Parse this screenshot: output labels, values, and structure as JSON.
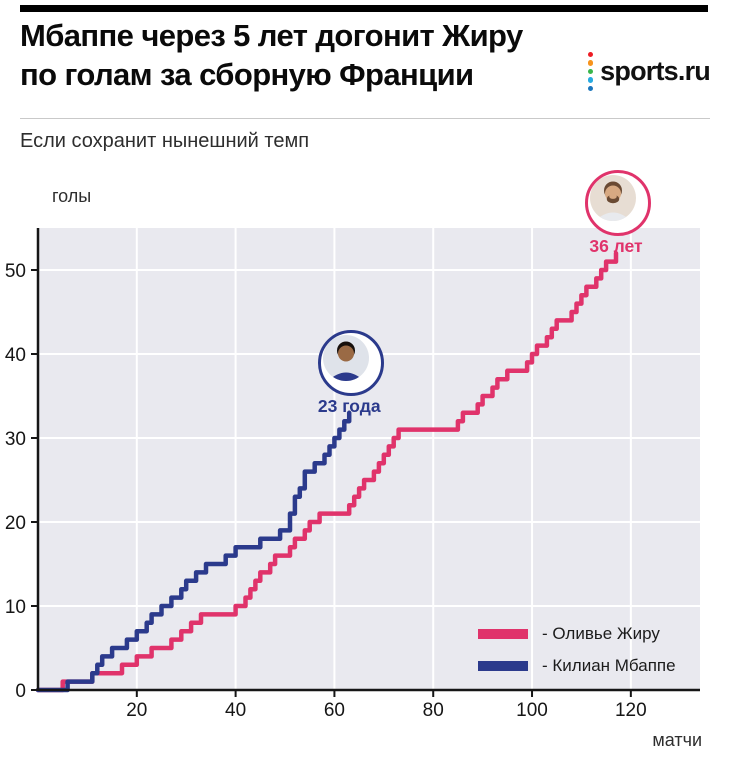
{
  "page": {
    "title_line1": "Мбаппе через 5 лет догонит Жиру",
    "title_line2": "по голам за сборную Франции",
    "logo_text": "sports.ru",
    "logo_dot_colors": [
      "#ed1c24",
      "#f7941d",
      "#39b54a",
      "#27aae1",
      "#1b75bc"
    ],
    "subtitle": "Если сохранит нынешний темп"
  },
  "chart_data": {
    "type": "line",
    "variant": "step",
    "title": "Мбаппе через 5 лет догонит Жиру по голам за сборную Франции",
    "subtitle": "Если сохранит нынешний темп",
    "xlabel": "матчи",
    "ylabel": "голы",
    "xlim": [
      0,
      134
    ],
    "ylim": [
      0,
      55
    ],
    "xticks": [
      20,
      40,
      60,
      80,
      100,
      120
    ],
    "yticks": [
      0,
      10,
      20,
      30,
      40,
      50
    ],
    "grid": true,
    "plot_bg": "#e9e9ef",
    "series": [
      {
        "id": "giroud",
        "name": "Оливье Жиру",
        "color": "#e0336b",
        "points": [
          [
            0,
            0
          ],
          [
            5,
            1
          ],
          [
            11,
            2
          ],
          [
            17,
            3
          ],
          [
            20,
            4
          ],
          [
            23,
            5
          ],
          [
            27,
            6
          ],
          [
            29,
            7
          ],
          [
            31,
            8
          ],
          [
            33,
            9
          ],
          [
            40,
            10
          ],
          [
            42,
            11
          ],
          [
            43,
            12
          ],
          [
            44,
            13
          ],
          [
            45,
            14
          ],
          [
            47,
            15
          ],
          [
            48,
            16
          ],
          [
            51,
            17
          ],
          [
            52,
            18
          ],
          [
            54,
            19
          ],
          [
            55,
            20
          ],
          [
            57,
            21
          ],
          [
            63,
            22
          ],
          [
            64,
            23
          ],
          [
            65,
            24
          ],
          [
            66,
            25
          ],
          [
            68,
            26
          ],
          [
            69,
            27
          ],
          [
            70,
            28
          ],
          [
            71,
            29
          ],
          [
            72,
            30
          ],
          [
            73,
            31
          ],
          [
            85,
            32
          ],
          [
            86,
            33
          ],
          [
            89,
            34
          ],
          [
            90,
            35
          ],
          [
            92,
            36
          ],
          [
            93,
            37
          ],
          [
            95,
            38
          ],
          [
            99,
            39
          ],
          [
            100,
            40
          ],
          [
            101,
            41
          ],
          [
            103,
            42
          ],
          [
            104,
            43
          ],
          [
            105,
            44
          ],
          [
            108,
            45
          ],
          [
            109,
            46
          ],
          [
            110,
            47
          ],
          [
            111,
            48
          ],
          [
            113,
            49
          ],
          [
            114,
            50
          ],
          [
            115,
            51
          ],
          [
            117,
            52
          ]
        ]
      },
      {
        "id": "mbappe",
        "name": "Килиан Мбаппе",
        "color": "#2b3a8c",
        "points": [
          [
            0,
            0
          ],
          [
            6,
            1
          ],
          [
            11,
            2
          ],
          [
            12,
            3
          ],
          [
            13,
            4
          ],
          [
            15,
            5
          ],
          [
            18,
            6
          ],
          [
            20,
            7
          ],
          [
            22,
            8
          ],
          [
            23,
            9
          ],
          [
            25,
            10
          ],
          [
            27,
            11
          ],
          [
            29,
            12
          ],
          [
            30,
            13
          ],
          [
            32,
            14
          ],
          [
            34,
            15
          ],
          [
            38,
            16
          ],
          [
            40,
            17
          ],
          [
            45,
            18
          ],
          [
            49,
            19
          ],
          [
            51,
            20
          ],
          [
            51,
            21
          ],
          [
            52,
            22
          ],
          [
            52,
            23
          ],
          [
            53,
            24
          ],
          [
            54,
            25
          ],
          [
            54,
            26
          ],
          [
            56,
            27
          ],
          [
            58,
            28
          ],
          [
            59,
            29
          ],
          [
            60,
            30
          ],
          [
            61,
            31
          ],
          [
            62,
            32
          ],
          [
            63,
            33
          ]
        ]
      }
    ],
    "annotations": [
      {
        "id": "giroud",
        "label": "36 лет",
        "x": 117,
        "y": 52,
        "color": "#e0336b"
      },
      {
        "id": "mbappe",
        "label": "23 года",
        "x": 63,
        "y": 33,
        "color": "#2b3a8c"
      }
    ],
    "legend": {
      "position": "bottom-right",
      "entries": [
        {
          "label": "- Оливье Жиру",
          "series": "giroud"
        },
        {
          "label": "- Килиан Мбаппе",
          "series": "mbappe"
        }
      ]
    }
  }
}
